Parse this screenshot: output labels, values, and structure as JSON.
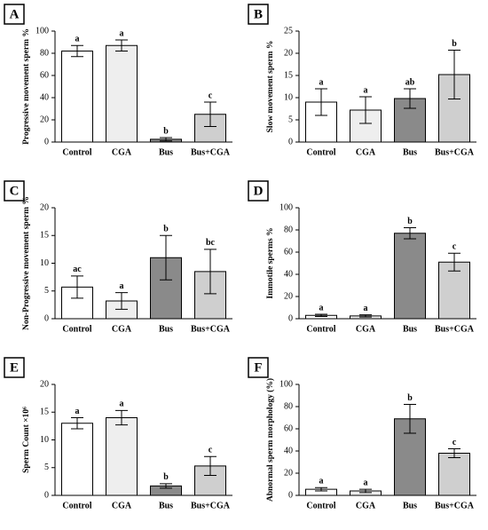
{
  "chart_data": [
    {
      "type": "bar",
      "panel": "A",
      "ylabel": "Progressive movement sperm %",
      "categories": [
        "Control",
        "CGA",
        "Bus",
        "Bus+CGA"
      ],
      "values": [
        82,
        87,
        2.5,
        25
      ],
      "errors": [
        5,
        5,
        1.5,
        11
      ],
      "annotations": [
        "a",
        "a",
        "b",
        "c"
      ],
      "colors": [
        "#ffffff",
        "#eeeeee",
        "#8a8a8a",
        "#cfcfcf"
      ],
      "ylim": [
        0,
        100
      ],
      "yticks": [
        0,
        20,
        40,
        60,
        80,
        100
      ]
    },
    {
      "type": "bar",
      "panel": "B",
      "ylabel": "Slow movement sperm %",
      "categories": [
        "Control",
        "CGA",
        "Bus",
        "Bus+CGA"
      ],
      "values": [
        9,
        7.2,
        9.8,
        15.2
      ],
      "errors": [
        3,
        3,
        2.2,
        5.5
      ],
      "annotations": [
        "a",
        "a",
        "ab",
        "b"
      ],
      "colors": [
        "#ffffff",
        "#eeeeee",
        "#8a8a8a",
        "#cfcfcf"
      ],
      "ylim": [
        0,
        25
      ],
      "yticks": [
        0,
        5,
        10,
        15,
        20,
        25
      ]
    },
    {
      "type": "bar",
      "panel": "C",
      "ylabel": "Non-Progressive movement sperm %",
      "categories": [
        "Control",
        "CGA",
        "Bus",
        "Bus+CGA"
      ],
      "values": [
        5.7,
        3.2,
        11,
        8.5
      ],
      "errors": [
        2,
        1.5,
        4,
        4
      ],
      "annotations": [
        "ac",
        "a",
        "b",
        "bc"
      ],
      "colors": [
        "#ffffff",
        "#eeeeee",
        "#8a8a8a",
        "#cfcfcf"
      ],
      "ylim": [
        0,
        20
      ],
      "yticks": [
        0,
        5,
        10,
        15,
        20
      ]
    },
    {
      "type": "bar",
      "panel": "D",
      "ylabel": "Immotile sperms %",
      "categories": [
        "Control",
        "CGA",
        "Bus",
        "Bus+CGA"
      ],
      "values": [
        3,
        2.5,
        77,
        51
      ],
      "errors": [
        1,
        1,
        5,
        8
      ],
      "annotations": [
        "a",
        "a",
        "b",
        "c"
      ],
      "colors": [
        "#ffffff",
        "#eeeeee",
        "#8a8a8a",
        "#cfcfcf"
      ],
      "ylim": [
        0,
        100
      ],
      "yticks": [
        0,
        20,
        40,
        60,
        80,
        100
      ]
    },
    {
      "type": "bar",
      "panel": "E",
      "ylabel": "Sperm Count ×10⁶",
      "categories": [
        "Control",
        "CGA",
        "Bus",
        "Bus+CGA"
      ],
      "values": [
        13,
        14,
        1.7,
        5.3
      ],
      "errors": [
        1,
        1.3,
        0.4,
        1.7
      ],
      "annotations": [
        "a",
        "a",
        "b",
        "c"
      ],
      "colors": [
        "#ffffff",
        "#eeeeee",
        "#8a8a8a",
        "#cfcfcf"
      ],
      "ylim": [
        0,
        20
      ],
      "yticks": [
        0,
        5,
        10,
        15,
        20
      ]
    },
    {
      "type": "bar",
      "panel": "F",
      "ylabel": "Abnormal sperm morphology (%)",
      "categories": [
        "Control",
        "CGA",
        "Bus",
        "Bus+CGA"
      ],
      "values": [
        5.5,
        4,
        69,
        38
      ],
      "errors": [
        1.5,
        1.5,
        13,
        4
      ],
      "annotations": [
        "a",
        "a",
        "b",
        "c"
      ],
      "colors": [
        "#ffffff",
        "#eeeeee",
        "#8a8a8a",
        "#cfcfcf"
      ],
      "ylim": [
        0,
        100
      ],
      "yticks": [
        0,
        20,
        40,
        60,
        80,
        100
      ]
    }
  ]
}
